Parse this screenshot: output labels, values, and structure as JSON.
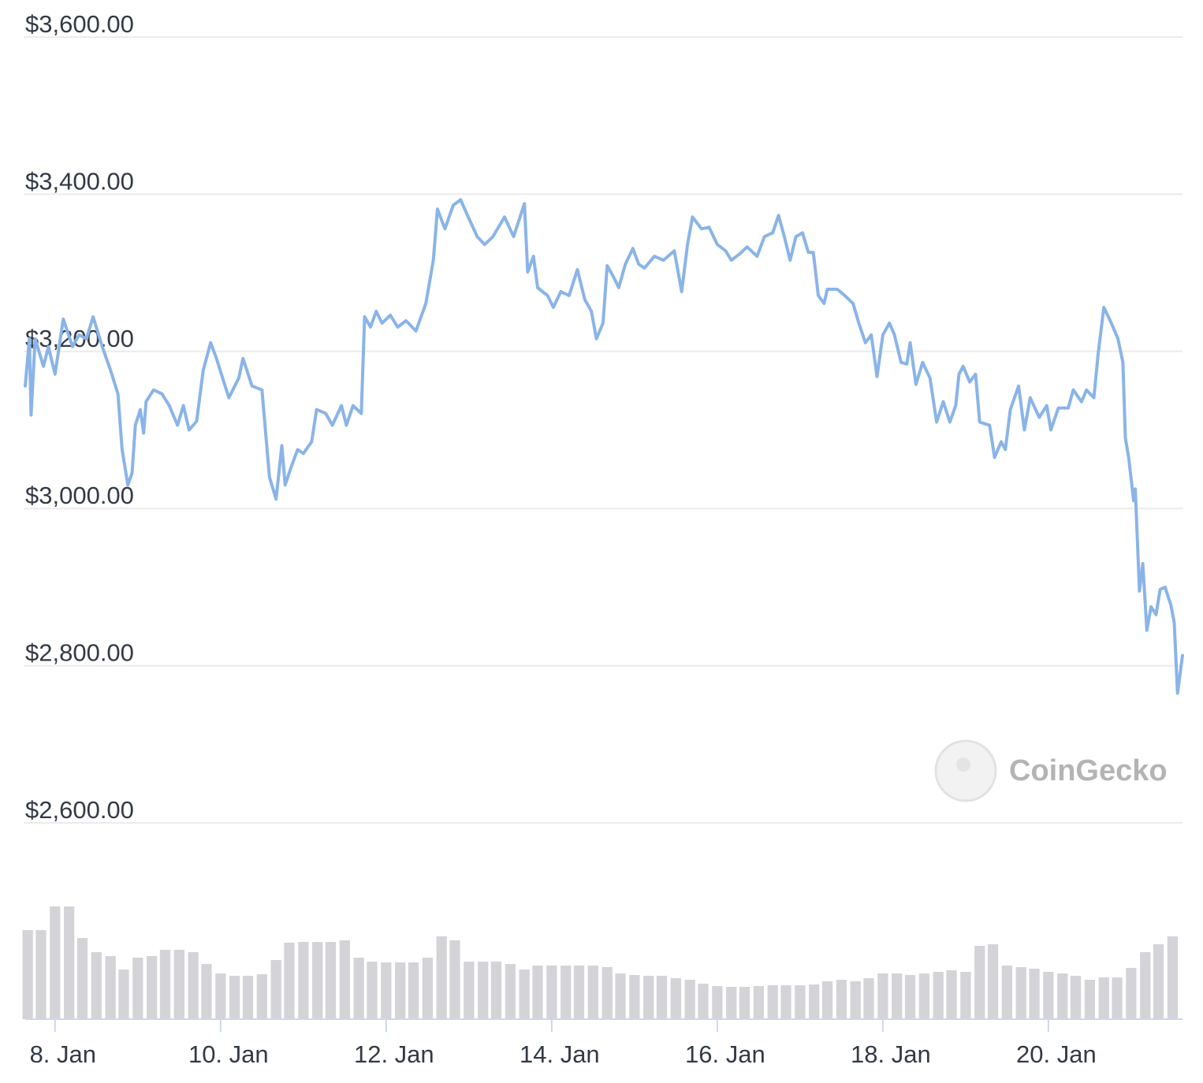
{
  "chart_data": {
    "type": "line",
    "color": "#8ab4e8",
    "grid": true,
    "watermark": "CoinGecko",
    "xlim": [
      7.64,
      21.62
    ],
    "xticks": [
      {
        "value": 8,
        "label": "8. Jan"
      },
      {
        "value": 10,
        "label": "10. Jan"
      },
      {
        "value": 12,
        "label": "12. Jan"
      },
      {
        "value": 14,
        "label": "14. Jan"
      },
      {
        "value": 16,
        "label": "16. Jan"
      },
      {
        "value": 18,
        "label": "18. Jan"
      },
      {
        "value": 20,
        "label": "20. Jan"
      }
    ],
    "ylim": [
      2600,
      3600
    ],
    "yticks": [
      {
        "value": 2600,
        "label": "$2,600.00"
      },
      {
        "value": 2800,
        "label": "$2,800.00"
      },
      {
        "value": 3000,
        "label": "$3,000.00"
      },
      {
        "value": 3200,
        "label": "$3,200.00"
      },
      {
        "value": 3400,
        "label": "$3,400.00"
      },
      {
        "value": 3600,
        "label": "$3,600.00"
      }
    ],
    "x": [
      7.64,
      7.69,
      7.71,
      7.76,
      7.86,
      7.92,
      8.0,
      8.1,
      8.21,
      8.29,
      8.38,
      8.46,
      8.57,
      8.67,
      8.76,
      8.81,
      8.88,
      8.93,
      8.97,
      9.03,
      9.07,
      9.1,
      9.19,
      9.29,
      9.38,
      9.48,
      9.55,
      9.62,
      9.71,
      9.79,
      9.88,
      9.95,
      10.1,
      10.22,
      10.27,
      10.38,
      10.5,
      10.59,
      10.67,
      10.74,
      10.78,
      10.86,
      10.93,
      11.0,
      11.1,
      11.16,
      11.27,
      11.35,
      11.46,
      11.52,
      11.6,
      11.7,
      11.74,
      11.81,
      11.88,
      11.95,
      12.05,
      12.14,
      12.24,
      12.36,
      12.48,
      12.57,
      12.62,
      12.71,
      12.81,
      12.9,
      12.97,
      13.1,
      13.19,
      13.29,
      13.43,
      13.54,
      13.67,
      13.71,
      13.78,
      13.83,
      13.95,
      14.02,
      14.11,
      14.21,
      14.31,
      14.4,
      14.48,
      14.54,
      14.62,
      14.67,
      14.74,
      14.81,
      14.89,
      14.98,
      15.05,
      15.12,
      15.24,
      15.35,
      15.48,
      15.57,
      15.64,
      15.7,
      15.81,
      15.9,
      16.0,
      16.1,
      16.17,
      16.27,
      16.36,
      16.48,
      16.57,
      16.67,
      16.74,
      16.81,
      16.88,
      16.95,
      17.03,
      17.1,
      17.16,
      17.22,
      17.29,
      17.33,
      17.45,
      17.54,
      17.64,
      17.71,
      17.79,
      17.86,
      17.93,
      18.0,
      18.08,
      18.14,
      18.22,
      18.29,
      18.33,
      18.4,
      18.48,
      18.57,
      18.65,
      18.73,
      18.81,
      18.88,
      18.92,
      18.97,
      19.05,
      19.12,
      19.17,
      19.29,
      19.35,
      19.43,
      19.48,
      19.54,
      19.64,
      19.71,
      19.78,
      19.89,
      19.98,
      20.03,
      20.12,
      20.24,
      20.3,
      20.4,
      20.46,
      20.55,
      20.6,
      20.67,
      20.76,
      20.84,
      20.9,
      20.93,
      20.97,
      21.03,
      21.05,
      21.1,
      21.14,
      21.19,
      21.24,
      21.3,
      21.35,
      21.41,
      21.48,
      21.52,
      21.56,
      21.62
    ],
    "values": [
      3156,
      3216,
      3119,
      3216,
      3181,
      3206,
      3171,
      3241,
      3206,
      3221,
      3216,
      3244,
      3206,
      3176,
      3146,
      3075,
      3030,
      3045,
      3106,
      3126,
      3096,
      3136,
      3151,
      3146,
      3131,
      3106,
      3131,
      3100,
      3111,
      3176,
      3211,
      3191,
      3141,
      3166,
      3191,
      3156,
      3151,
      3040,
      3012,
      3080,
      3030,
      3055,
      3075,
      3070,
      3085,
      3126,
      3121,
      3106,
      3131,
      3106,
      3131,
      3121,
      3244,
      3231,
      3251,
      3236,
      3246,
      3231,
      3239,
      3226,
      3261,
      3316,
      3381,
      3356,
      3386,
      3393,
      3376,
      3346,
      3336,
      3346,
      3371,
      3346,
      3388,
      3301,
      3321,
      3281,
      3271,
      3256,
      3276,
      3271,
      3304,
      3266,
      3251,
      3216,
      3236,
      3309,
      3296,
      3281,
      3311,
      3331,
      3311,
      3306,
      3321,
      3316,
      3328,
      3276,
      3336,
      3371,
      3356,
      3358,
      3336,
      3328,
      3316,
      3324,
      3333,
      3321,
      3346,
      3351,
      3373,
      3346,
      3316,
      3346,
      3351,
      3326,
      3326,
      3271,
      3261,
      3279,
      3279,
      3271,
      3261,
      3236,
      3211,
      3221,
      3168,
      3221,
      3236,
      3221,
      3186,
      3184,
      3211,
      3158,
      3186,
      3166,
      3110,
      3136,
      3110,
      3131,
      3171,
      3181,
      3161,
      3171,
      3110,
      3106,
      3065,
      3085,
      3075,
      3126,
      3156,
      3100,
      3141,
      3116,
      3131,
      3100,
      3128,
      3128,
      3151,
      3136,
      3151,
      3141,
      3196,
      3256,
      3236,
      3216,
      3186,
      3090,
      3065,
      3010,
      3025,
      2895,
      2930,
      2845,
      2875,
      2865,
      2897,
      2900,
      2877,
      2855,
      2765,
      2813
    ],
    "volume_color": "#d4d4d8",
    "volume_ylim": [
      0,
      150
    ],
    "volume_x": [
      7.67,
      7.83,
      8.0,
      8.17,
      8.33,
      8.5,
      8.67,
      8.83,
      9.0,
      9.17,
      9.33,
      9.5,
      9.67,
      9.83,
      10.0,
      10.17,
      10.33,
      10.5,
      10.67,
      10.83,
      11.0,
      11.17,
      11.33,
      11.5,
      11.67,
      11.83,
      12.0,
      12.17,
      12.33,
      12.5,
      12.67,
      12.83,
      13.0,
      13.17,
      13.33,
      13.5,
      13.67,
      13.83,
      14.0,
      14.17,
      14.33,
      14.5,
      14.67,
      14.83,
      15.0,
      15.17,
      15.33,
      15.5,
      15.67,
      15.83,
      16.0,
      16.17,
      16.33,
      16.5,
      16.67,
      16.83,
      17.0,
      17.17,
      17.33,
      17.5,
      17.67,
      17.83,
      18.0,
      18.17,
      18.33,
      18.5,
      18.67,
      18.83,
      19.0,
      19.17,
      19.33,
      19.5,
      19.67,
      19.83,
      20.0,
      20.17,
      20.33,
      20.5,
      20.67,
      20.83,
      21.0,
      21.17,
      21.33,
      21.5
    ],
    "volume_values": [
      113,
      113,
      143,
      143,
      103,
      85,
      80,
      63,
      78,
      80,
      88,
      88,
      85,
      70,
      58,
      55,
      55,
      57,
      75,
      97,
      98,
      98,
      98,
      100,
      78,
      73,
      72,
      72,
      72,
      78,
      105,
      100,
      73,
      73,
      73,
      70,
      63,
      68,
      68,
      68,
      68,
      68,
      66,
      58,
      56,
      55,
      55,
      52,
      50,
      45,
      42,
      41,
      41,
      42,
      43,
      43,
      43,
      44,
      48,
      50,
      48,
      52,
      58,
      58,
      56,
      58,
      60,
      62,
      60,
      93,
      95,
      68,
      66,
      64,
      60,
      58,
      55,
      50,
      53,
      53,
      65,
      85,
      95,
      105
    ]
  }
}
